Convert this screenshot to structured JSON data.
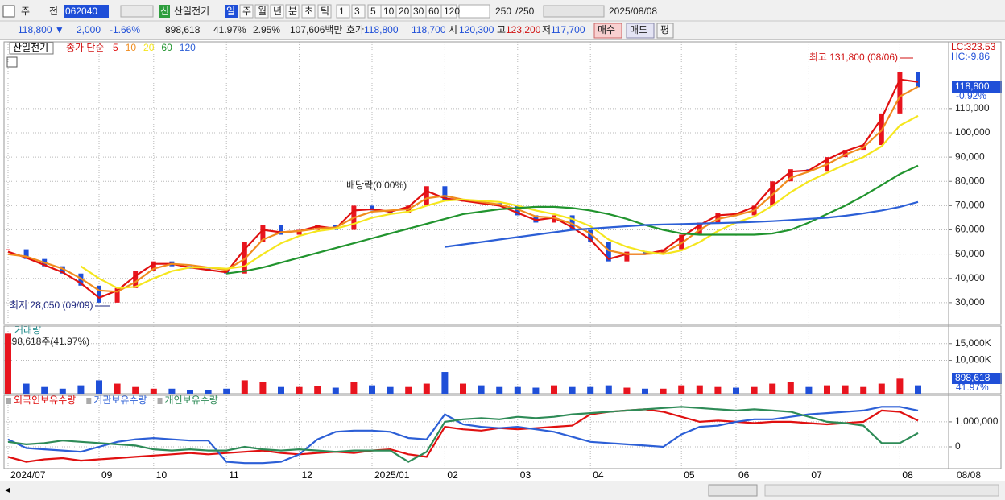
{
  "toolbar": {
    "row1": [
      "주",
      "전",
      "062040",
      "신",
      "산일전기",
      "일",
      "주",
      "월",
      "년",
      "분",
      "초",
      "틱",
      "1",
      "3",
      "5",
      "10",
      "20",
      "30",
      "60",
      "120",
      "250",
      "/250",
      "2025/08/08"
    ],
    "row2": [
      "118,800 ▼",
      "2,000",
      "-1.66%",
      "898,618",
      "41.97%",
      "2.95%",
      "107,606백만",
      "호가",
      "118,800",
      "118,700",
      "시",
      "120,300",
      "고",
      "123,200",
      "저",
      "117,700",
      "매수",
      "매도",
      "평"
    ]
  },
  "chart_data": {
    "type": "line",
    "categories": [
      "2024/07",
      null,
      null,
      null,
      null,
      "09",
      null,
      null,
      "10",
      null,
      null,
      null,
      "11",
      null,
      null,
      null,
      "12",
      null,
      null,
      null,
      "2025/01",
      null,
      null,
      null,
      "02",
      null,
      null,
      null,
      "03",
      null,
      null,
      null,
      "04",
      null,
      null,
      null,
      null,
      "05",
      null,
      null,
      "06",
      null,
      null,
      null,
      "07",
      null,
      null,
      null,
      null,
      "08",
      null
    ],
    "x_end_label": "08/08",
    "grid": true,
    "panels": [
      {
        "type": "line",
        "stock": "산일전기",
        "legend_label": "종가 단순",
        "ylim": [
          21000,
          137500
        ],
        "yticks": [
          {
            "value": 30000,
            "label": "30,000"
          },
          {
            "value": 40000,
            "label": "40,000"
          },
          {
            "value": 50000,
            "label": "50,000"
          },
          {
            "value": 60000,
            "label": "60,000"
          },
          {
            "value": 70000,
            "label": "70,000"
          },
          {
            "value": 80000,
            "label": "80,000"
          },
          {
            "value": 90000,
            "label": "90,000"
          },
          {
            "value": 100000,
            "label": "100,000"
          },
          {
            "value": 110000,
            "label": "110,000"
          }
        ],
        "up_color": "#e8141e",
        "down_color": "#1f4fd8",
        "close": [
          52000,
          48000,
          45000,
          42000,
          37000,
          30000,
          36000,
          43000,
          47000,
          45000,
          44000,
          43000,
          42000,
          55000,
          62000,
          58000,
          60000,
          62000,
          60000,
          70000,
          68000,
          67000,
          70000,
          78000,
          72000,
          72000,
          71000,
          70000,
          66000,
          63000,
          66000,
          60000,
          55000,
          47000,
          51000,
          50000,
          52000,
          58000,
          63000,
          67000,
          66000,
          70000,
          80000,
          85000,
          84000,
          90000,
          93000,
          95000,
          108000,
          125000,
          118800
        ],
        "series": [
          {
            "name": "5",
            "color": "#e01010",
            "values": [
              51000,
              48500,
              45500,
              42500,
              38000,
              32000,
              35000,
              41000,
              46000,
              46000,
              44500,
              43500,
              42500,
              52000,
              60000,
              59000,
              59500,
              61500,
              60500,
              68000,
              68500,
              67500,
              69500,
              76000,
              73000,
              72000,
              71000,
              70000,
              67000,
              64000,
              65000,
              61000,
              56000,
              48000,
              50000,
              50000,
              51500,
              57000,
              62000,
              66000,
              66500,
              69500,
              78000,
              84000,
              84500,
              89000,
              92500,
              95000,
              106000,
              122000,
              121000
            ]
          },
          {
            "name": "10",
            "color": "#f08c1e",
            "values": [
              50000,
              49000,
              46500,
              44000,
              40000,
              35000,
              34500,
              38500,
              44000,
              46000,
              45500,
              44500,
              43500,
              48000,
              56000,
              59000,
              59500,
              60500,
              61000,
              65000,
              67500,
              68000,
              68500,
              73000,
              74000,
              72500,
              71500,
              70500,
              68500,
              65500,
              65000,
              62500,
              58500,
              51500,
              50000,
              50000,
              50500,
              54500,
              60000,
              64500,
              66000,
              68000,
              74500,
              81500,
              84000,
              87000,
              91000,
              94000,
              101000,
              115000,
              119000
            ]
          },
          {
            "name": "20",
            "color": "#f5e61e",
            "values": [
              null,
              null,
              null,
              null,
              45000,
              40000,
              36000,
              36500,
              40000,
              43000,
              44500,
              44500,
              44000,
              45000,
              50000,
              54500,
              57500,
              59500,
              60500,
              62500,
              65000,
              66500,
              67500,
              70000,
              72000,
              72500,
              72000,
              71500,
              70000,
              68000,
              66500,
              64500,
              61500,
              56000,
              53000,
              51000,
              50000,
              51500,
              55000,
              59500,
              63000,
              65500,
              70000,
              75500,
              80000,
              83500,
              87000,
              90000,
              94500,
              103000,
              107000
            ]
          },
          {
            "name": "60",
            "color": "#21942e",
            "values": [
              null,
              null,
              null,
              null,
              null,
              null,
              null,
              null,
              null,
              null,
              null,
              null,
              42000,
              43000,
              44500,
              46500,
              48500,
              50500,
              52500,
              54500,
              56500,
              58500,
              60500,
              62500,
              64500,
              66500,
              67500,
              68500,
              69000,
              69500,
              69500,
              69000,
              68000,
              66500,
              64500,
              62000,
              60000,
              58500,
              58000,
              58000,
              58000,
              58000,
              58500,
              60000,
              63000,
              66500,
              70000,
              74000,
              78500,
              83000,
              86500
            ]
          },
          {
            "name": "120",
            "color": "#2c5fd6",
            "values": [
              null,
              null,
              null,
              null,
              null,
              null,
              null,
              null,
              null,
              null,
              null,
              null,
              null,
              null,
              null,
              null,
              null,
              null,
              null,
              null,
              null,
              null,
              null,
              null,
              53000,
              54000,
              55000,
              56000,
              57000,
              58000,
              59000,
              60000,
              60500,
              61000,
              61500,
              62000,
              62200,
              62400,
              62600,
              62800,
              63000,
              63300,
              63600,
              64000,
              64500,
              65000,
              65800,
              66800,
              68000,
              69500,
              71500
            ]
          }
        ],
        "annotations": [
          "최고 131,800 (08/06)",
          "최저 28,050 (09/09)",
          "배당락(0.00%)",
          "LC:323.53",
          "HC:-9.86"
        ],
        "price_tag": "118,800",
        "change_tag": "-0.92%"
      },
      {
        "type": "bar",
        "title": "거래량",
        "info": "898,618주(41.97%)",
        "ylim": [
          0,
          20250
        ],
        "yticks": [
          {
            "value": 10000,
            "label": "10,000K"
          },
          {
            "value": 15000,
            "label": "15,000K"
          }
        ],
        "values": [
          18000,
          3000,
          2000,
          1500,
          2500,
          4000,
          3000,
          2000,
          1500,
          1500,
          1200,
          1200,
          1500,
          4000,
          3500,
          2000,
          2000,
          2200,
          1800,
          3500,
          2500,
          2000,
          2000,
          3000,
          6500,
          3000,
          2500,
          2000,
          2000,
          1800,
          2500,
          2000,
          2000,
          2500,
          1800,
          1500,
          1500,
          2500,
          2500,
          2000,
          1800,
          2000,
          3000,
          3500,
          2000,
          2500,
          2500,
          2000,
          3000,
          4500,
          2500
        ],
        "volume_tag": "898,618",
        "ratio_tag": "41.97%"
      },
      {
        "type": "line",
        "ylim": [
          -870000,
          2060000
        ],
        "yticks": [
          0,
          {
            "value": 1000000,
            "label": "1,000,000"
          }
        ],
        "series": [
          {
            "name": "외국인보유수량",
            "color": "#e01010",
            "values": [
              -400000,
              -600000,
              -500000,
              -450000,
              -550000,
              -500000,
              -450000,
              -400000,
              -350000,
              -300000,
              -250000,
              -300000,
              -250000,
              -200000,
              -150000,
              -250000,
              -300000,
              -250000,
              -200000,
              -250000,
              -150000,
              -100000,
              -300000,
              -400000,
              800000,
              700000,
              650000,
              750000,
              700000,
              750000,
              800000,
              850000,
              1300000,
              1400000,
              1450000,
              1500000,
              1400000,
              1200000,
              1000000,
              1050000,
              1000000,
              950000,
              1000000,
              1000000,
              950000,
              900000,
              950000,
              1000000,
              1450000,
              1400000,
              1050000
            ]
          },
          {
            "name": "기관보유수량",
            "color": "#2c5fd6",
            "values": [
              300000,
              -50000,
              -100000,
              -150000,
              -200000,
              0,
              200000,
              300000,
              350000,
              300000,
              250000,
              250000,
              -600000,
              -650000,
              -650000,
              -600000,
              -300000,
              300000,
              600000,
              650000,
              650000,
              600000,
              350000,
              300000,
              1300000,
              900000,
              800000,
              750000,
              800000,
              700000,
              600000,
              400000,
              200000,
              150000,
              100000,
              50000,
              0,
              500000,
              800000,
              850000,
              1000000,
              1100000,
              1100000,
              1200000,
              1300000,
              1350000,
              1400000,
              1450000,
              1600000,
              1600000,
              1450000
            ]
          },
          {
            "name": "개인보유수량",
            "color": "#2e8b57",
            "values": [
              200000,
              100000,
              150000,
              250000,
              200000,
              150000,
              100000,
              50000,
              -100000,
              -150000,
              -100000,
              -150000,
              -150000,
              0,
              -100000,
              -150000,
              -100000,
              -150000,
              -200000,
              -150000,
              -150000,
              -150000,
              -600000,
              -200000,
              1000000,
              1100000,
              1150000,
              1100000,
              1200000,
              1150000,
              1200000,
              1300000,
              1350000,
              1400000,
              1450000,
              1500000,
              1550000,
              1600000,
              1550000,
              1500000,
              1450000,
              1500000,
              1450000,
              1400000,
              1200000,
              1000000,
              950000,
              850000,
              150000,
              150000,
              550000
            ]
          }
        ]
      }
    ]
  }
}
